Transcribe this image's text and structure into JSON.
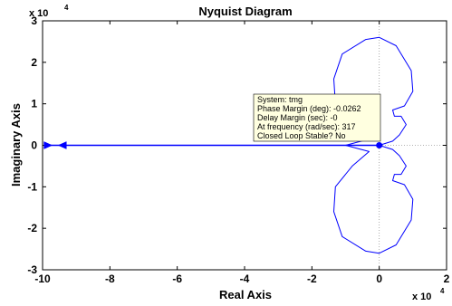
{
  "chart_data": {
    "type": "line",
    "title": "Nyquist Diagram",
    "xlabel": "Real Axis",
    "ylabel": "Imaginary Axis",
    "x_multiplier": "x 10",
    "y_multiplier": "x 10",
    "multiplier_exponent": "4",
    "xlim": [
      -10,
      2
    ],
    "ylim": [
      -3,
      3
    ],
    "x_ticks": [
      -10,
      -8,
      -6,
      -4,
      -2,
      0,
      2
    ],
    "y_ticks": [
      -3,
      -2,
      -1,
      0,
      1,
      2,
      3
    ],
    "x_tick_labels": [
      "-10",
      "-8",
      "-6",
      "-4",
      "-2",
      "0",
      "2"
    ],
    "y_tick_labels": [
      "-3",
      "-2",
      "-1",
      "0",
      "1",
      "2",
      "3"
    ],
    "grid": false,
    "reference_lines": [
      "x=0 dotted",
      "y=0 dotted"
    ],
    "series": [
      {
        "color": "#0000ff",
        "upper_branch": [
          [
            -9.7,
            0.0
          ],
          [
            -1.0,
            0.0
          ],
          [
            -0.3,
            0.15
          ],
          [
            -0.8,
            0.5
          ],
          [
            -1.3,
            1.0
          ],
          [
            -1.35,
            1.6
          ],
          [
            -1.1,
            2.2
          ],
          [
            -0.4,
            2.55
          ],
          [
            0.0,
            2.6
          ],
          [
            0.5,
            2.4
          ],
          [
            0.95,
            1.8
          ],
          [
            1.0,
            1.3
          ],
          [
            0.75,
            0.95
          ],
          [
            0.4,
            0.85
          ],
          [
            0.45,
            0.7
          ],
          [
            0.65,
            0.7
          ],
          [
            0.8,
            0.5
          ],
          [
            0.6,
            0.25
          ],
          [
            0.4,
            0.1
          ],
          [
            0.0,
            0.0
          ]
        ],
        "lower_branch": [
          [
            0.0,
            0.0
          ],
          [
            0.4,
            -0.1
          ],
          [
            0.6,
            -0.25
          ],
          [
            0.8,
            -0.5
          ],
          [
            0.65,
            -0.7
          ],
          [
            0.45,
            -0.7
          ],
          [
            0.4,
            -0.85
          ],
          [
            0.75,
            -0.95
          ],
          [
            1.0,
            -1.3
          ],
          [
            0.95,
            -1.8
          ],
          [
            0.5,
            -2.4
          ],
          [
            0.0,
            -2.6
          ],
          [
            -0.4,
            -2.55
          ],
          [
            -1.1,
            -2.2
          ],
          [
            -1.35,
            -1.6
          ],
          [
            -1.3,
            -1.0
          ],
          [
            -0.8,
            -0.5
          ],
          [
            -0.3,
            -0.15
          ],
          [
            -1.0,
            0.0
          ]
        ]
      }
    ],
    "arrows": [
      {
        "x": -9.4,
        "y": 0.0,
        "direction": "left"
      },
      {
        "x": -9.85,
        "y": 0.0,
        "direction": "right"
      }
    ],
    "marker": {
      "x": 0.0,
      "y": 0.0
    },
    "datatip": {
      "lines": [
        "System: tmg",
        "Phase Margin (deg): -0.0262",
        "Delay Margin (sec): -0",
        "At frequency (rad/sec): 317",
        "Closed Loop Stable? No"
      ],
      "background": "#ffffe0"
    }
  }
}
